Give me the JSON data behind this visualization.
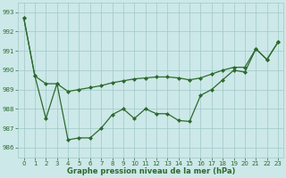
{
  "x": [
    0,
    1,
    2,
    3,
    4,
    5,
    6,
    7,
    8,
    9,
    10,
    11,
    12,
    13,
    14,
    15,
    16,
    17,
    18,
    19,
    20,
    21,
    22,
    23
  ],
  "line1_y": [
    992.7,
    989.7,
    989.3,
    989.3,
    988.9,
    989.0,
    989.1,
    989.2,
    989.35,
    989.45,
    989.55,
    989.6,
    989.65,
    989.65,
    989.6,
    989.5,
    989.6,
    989.8,
    990.0,
    990.15,
    990.15,
    991.1,
    990.55,
    991.45
  ],
  "line2_y": [
    992.7,
    989.7,
    987.5,
    989.3,
    986.4,
    986.5,
    986.5,
    987.0,
    987.7,
    988.0,
    987.5,
    988.0,
    987.75,
    987.75,
    987.4,
    987.35,
    988.7,
    989.0,
    989.5,
    990.0,
    989.9,
    991.1,
    990.55,
    991.45
  ],
  "ylim": [
    985.5,
    993.5
  ],
  "yticks": [
    986,
    987,
    988,
    989,
    990,
    991,
    992,
    993
  ],
  "xlim": [
    -0.5,
    23.5
  ],
  "xticks": [
    0,
    1,
    2,
    3,
    4,
    5,
    6,
    7,
    8,
    9,
    10,
    11,
    12,
    13,
    14,
    15,
    16,
    17,
    18,
    19,
    20,
    21,
    22,
    23
  ],
  "xlabel": "Graphe pression niveau de la mer (hPa)",
  "line_color": "#2d6a2d",
  "bg_color": "#cce8e8",
  "grid_color": "#a0c8c8"
}
